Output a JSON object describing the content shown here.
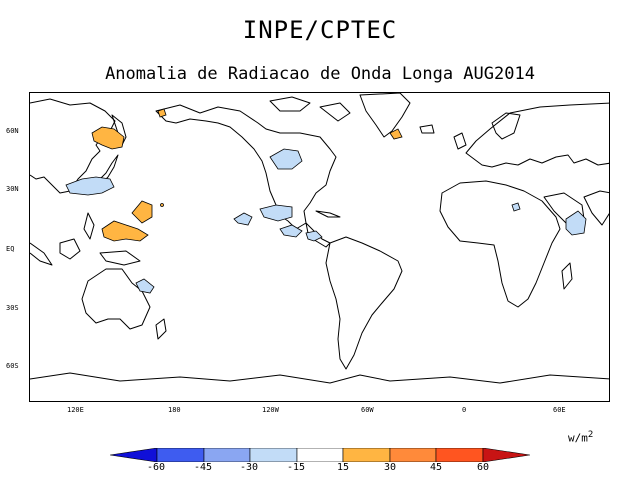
{
  "header": {
    "title": "INPE/CPTEC",
    "subtitle": "Anomalia de Radiacao de Onda Longa AUG2014"
  },
  "map": {
    "lat_ticks": [
      "60N",
      "30N",
      "EQ",
      "30S",
      "60S"
    ],
    "lon_ticks": [
      "120E",
      "180",
      "120W",
      "60W",
      "0",
      "60E"
    ]
  },
  "legend": {
    "units_base": "w/m",
    "units_exp": "2",
    "labels": [
      "-60",
      "-45",
      "-30",
      "-15",
      "15",
      "30",
      "45",
      "60"
    ],
    "colors": [
      "#1010d8",
      "#3e5cf0",
      "#8aa6f2",
      "#c2dcf7",
      "#ffffff",
      "#ffb542",
      "#ff8a3a",
      "#ff5520",
      "#c81414"
    ]
  }
}
